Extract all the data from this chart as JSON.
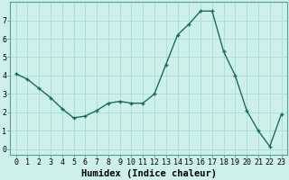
{
  "x": [
    0,
    1,
    2,
    3,
    4,
    5,
    6,
    7,
    8,
    9,
    10,
    11,
    12,
    13,
    14,
    15,
    16,
    17,
    18,
    19,
    20,
    21,
    22,
    23
  ],
  "y": [
    4.1,
    3.8,
    3.3,
    2.8,
    2.2,
    1.7,
    1.8,
    2.1,
    2.5,
    2.6,
    2.5,
    2.5,
    3.0,
    4.6,
    6.2,
    6.8,
    7.5,
    7.5,
    5.3,
    4.0,
    2.1,
    1.0,
    0.15,
    1.9
  ],
  "xlabel": "Humidex (Indice chaleur)",
  "ylim": [
    -0.3,
    8.0
  ],
  "xlim": [
    -0.5,
    23.5
  ],
  "line_color": "#1a6b5e",
  "bg_color": "#cef0ea",
  "grid_color": "#a8ddd6",
  "tick_label_fontsize": 6.0,
  "xlabel_fontsize": 7.5
}
